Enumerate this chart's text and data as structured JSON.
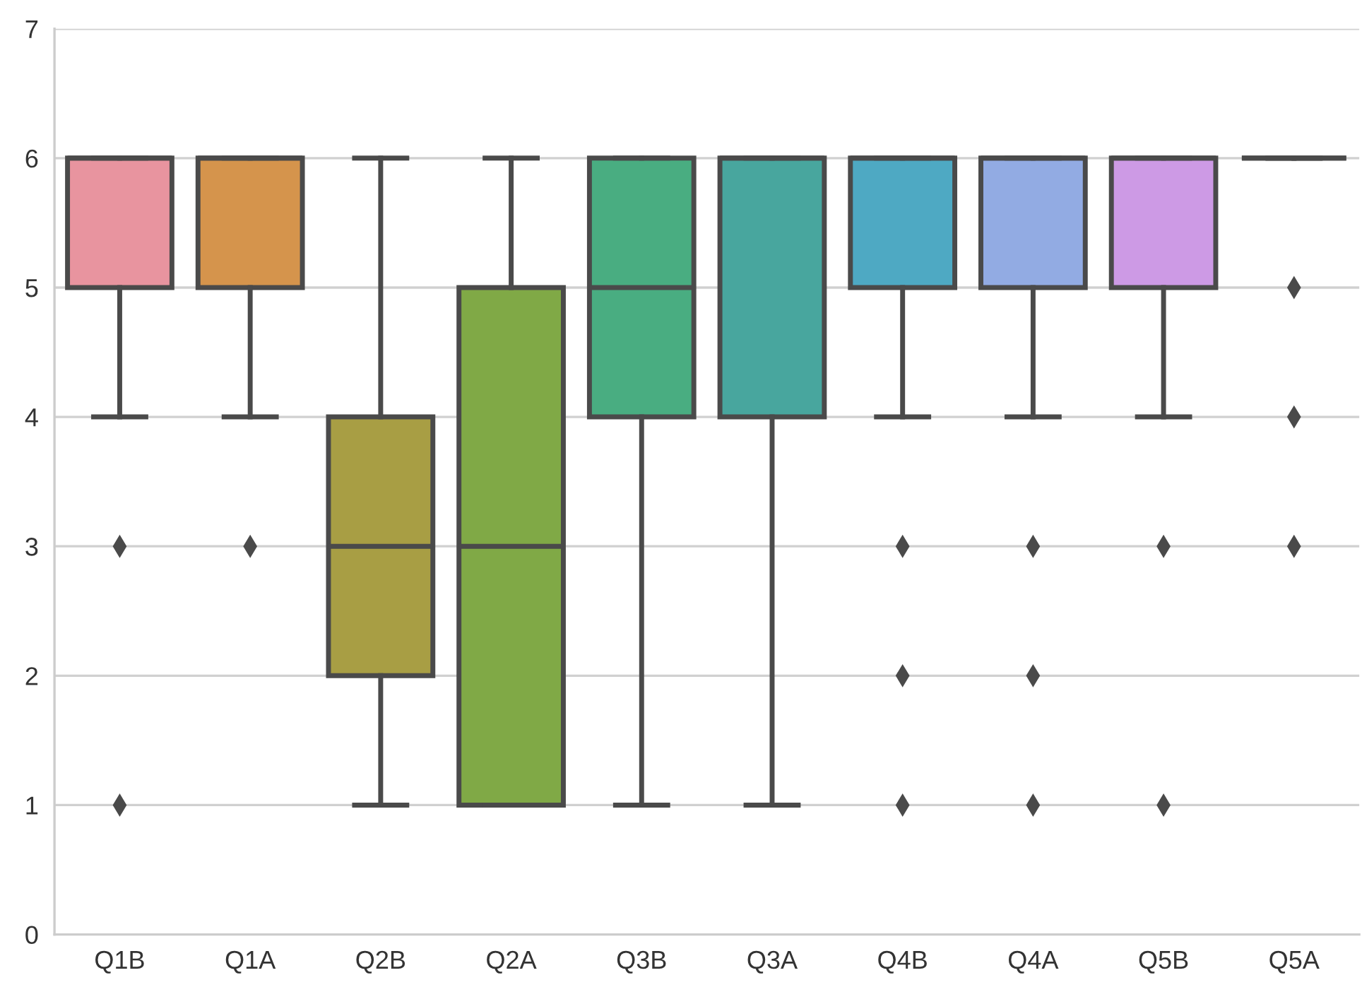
{
  "chart_data": {
    "type": "box",
    "categories": [
      "Q1B",
      "Q1A",
      "Q2B",
      "Q2A",
      "Q3B",
      "Q3A",
      "Q4B",
      "Q4A",
      "Q5B",
      "Q5A"
    ],
    "boxes": [
      {
        "low": 4,
        "q1": 5,
        "median": 6,
        "q3": 6,
        "high": 6,
        "outliers": [
          3,
          1
        ]
      },
      {
        "low": 4,
        "q1": 5,
        "median": 6,
        "q3": 6,
        "high": 6,
        "outliers": [
          3
        ]
      },
      {
        "low": 1,
        "q1": 2,
        "median": 3,
        "q3": 4,
        "high": 6
      },
      {
        "low": 1,
        "q1": 1,
        "median": 3,
        "q3": 5,
        "high": 6
      },
      {
        "low": 1,
        "q1": 4,
        "median": 5,
        "q3": 6,
        "high": 6
      },
      {
        "low": 1,
        "q1": 4,
        "median": 6,
        "q3": 6,
        "high": 6
      },
      {
        "low": 4,
        "q1": 5,
        "median": 6,
        "q3": 6,
        "high": 6,
        "outliers": [
          3,
          2,
          1
        ]
      },
      {
        "low": 4,
        "q1": 5,
        "median": 6,
        "q3": 6,
        "high": 6,
        "outliers": [
          3,
          2,
          1
        ]
      },
      {
        "low": 4,
        "q1": 5,
        "median": 6,
        "q3": 6,
        "high": 6,
        "outliers": [
          3,
          1
        ]
      },
      {
        "low": 6,
        "q1": 6,
        "median": 6,
        "q3": 6,
        "high": 6,
        "outliers": [
          5,
          4,
          3
        ]
      }
    ],
    "colors": [
      "#e8949f",
      "#d5944c",
      "#a89e44",
      "#80a946",
      "#49ad81",
      "#48a69e",
      "#4ea9c3",
      "#92abe3",
      "#cd9ae5",
      null
    ],
    "ylim": [
      0,
      7
    ],
    "yticks": [
      0,
      1,
      2,
      3,
      4,
      5,
      6,
      7
    ],
    "grid": "y"
  }
}
